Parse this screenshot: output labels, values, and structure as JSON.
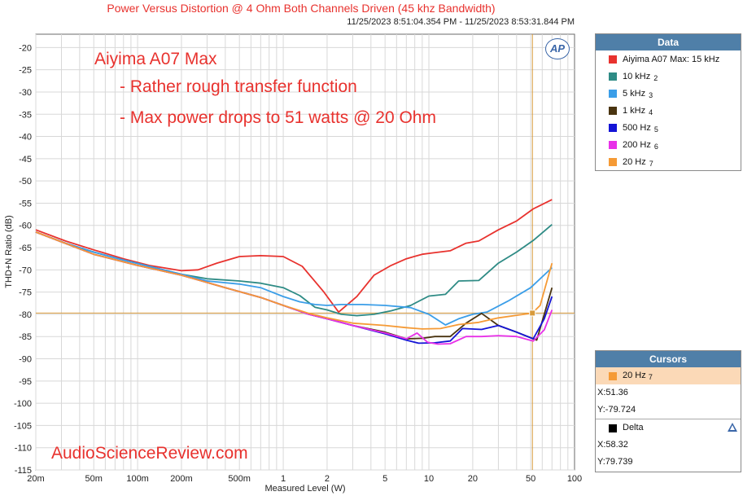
{
  "title": "Power Versus Distortion @ 4 Ohm Both Channels Driven (45 khz Bandwidth)",
  "timestamp": "11/25/2023 8:51:04.354 PM - 11/25/2023 8:53:31.844 PM",
  "logo": "AP",
  "annotations": {
    "device": "Aiyima A07 Max",
    "note1": "- Rather rough transfer function",
    "note2": "- Max power drops to 51 watts @ 20 Ohm",
    "watermark": "AudioScienceReview.com"
  },
  "data_panel": {
    "header": "Data",
    "items": [
      {
        "label": "Aiyima A07 Max: 15 kHz",
        "sub": "",
        "color": "#e8322e"
      },
      {
        "label": "10 kHz",
        "sub": "2",
        "color": "#2e8b85"
      },
      {
        "label": "5 kHz",
        "sub": "3",
        "color": "#3b9ee8"
      },
      {
        "label": "1 kHz",
        "sub": "4",
        "color": "#4a3410"
      },
      {
        "label": "500 Hz",
        "sub": "5",
        "color": "#1414d6"
      },
      {
        "label": "200 Hz",
        "sub": "6",
        "color": "#e830e8"
      },
      {
        "label": "20 Hz",
        "sub": "7",
        "color": "#f59a35"
      }
    ]
  },
  "cursors_panel": {
    "header": "Cursors",
    "selected": {
      "label": "20 Hz",
      "sub": "7",
      "color": "#f59a35"
    },
    "x": "X:51.36",
    "y": "Y:-79.724",
    "delta_label": "Delta",
    "delta_color": "#000000",
    "dx": "X:58.32",
    "dy": "Y:79.739"
  },
  "chart_data": {
    "type": "line",
    "xlabel": "Measured Level (W)",
    "ylabel": "THD+N Ratio (dB)",
    "xscale": "log",
    "xlim": [
      0.02,
      100
    ],
    "ylim": [
      -115,
      -17
    ],
    "x_ticks": [
      {
        "v": 0.02,
        "label": "20m"
      },
      {
        "v": 0.05,
        "label": "50m"
      },
      {
        "v": 0.1,
        "label": "100m"
      },
      {
        "v": 0.2,
        "label": "200m"
      },
      {
        "v": 0.5,
        "label": "500m"
      },
      {
        "v": 1,
        "label": "1"
      },
      {
        "v": 2,
        "label": "2"
      },
      {
        "v": 5,
        "label": "5"
      },
      {
        "v": 10,
        "label": "10"
      },
      {
        "v": 20,
        "label": "20"
      },
      {
        "v": 50,
        "label": "50"
      },
      {
        "v": 100,
        "label": "100"
      }
    ],
    "y_ticks": [
      -20,
      -25,
      -30,
      -35,
      -40,
      -45,
      -50,
      -55,
      -60,
      -65,
      -70,
      -75,
      -80,
      -85,
      -90,
      -95,
      -100,
      -105,
      -110,
      -115
    ],
    "grid": true,
    "cursor": {
      "x": 51.36,
      "y": -79.724,
      "color": "#d89a3a"
    },
    "series": [
      {
        "name": "Aiyima A07 Max: 15 kHz",
        "color": "#e8322e",
        "points": [
          [
            0.02,
            -61
          ],
          [
            0.032,
            -63.5
          ],
          [
            0.05,
            -65.5
          ],
          [
            0.08,
            -67.5
          ],
          [
            0.12,
            -69
          ],
          [
            0.2,
            -70.2
          ],
          [
            0.26,
            -70
          ],
          [
            0.35,
            -68.5
          ],
          [
            0.5,
            -67
          ],
          [
            0.7,
            -66.8
          ],
          [
            1,
            -67
          ],
          [
            1.35,
            -69.2
          ],
          [
            1.9,
            -75
          ],
          [
            2.4,
            -79.5
          ],
          [
            3.2,
            -76
          ],
          [
            4.2,
            -71.2
          ],
          [
            5.5,
            -69
          ],
          [
            7,
            -67.5
          ],
          [
            9,
            -66.5
          ],
          [
            10.5,
            -66.2
          ],
          [
            14,
            -65.7
          ],
          [
            18,
            -64
          ],
          [
            22,
            -63.5
          ],
          [
            30,
            -61
          ],
          [
            40,
            -59
          ],
          [
            52,
            -56.3
          ],
          [
            70,
            -54.2
          ]
        ]
      },
      {
        "name": "10 kHz",
        "color": "#2e8b85",
        "points": [
          [
            0.02,
            -61.5
          ],
          [
            0.032,
            -64
          ],
          [
            0.05,
            -66
          ],
          [
            0.08,
            -67.8
          ],
          [
            0.12,
            -69.2
          ],
          [
            0.2,
            -71
          ],
          [
            0.3,
            -72
          ],
          [
            0.5,
            -72.5
          ],
          [
            0.7,
            -73
          ],
          [
            1,
            -74
          ],
          [
            1.3,
            -75.8
          ],
          [
            1.65,
            -78.4
          ],
          [
            2,
            -79
          ],
          [
            2.5,
            -80
          ],
          [
            3.2,
            -80.3
          ],
          [
            4.2,
            -80
          ],
          [
            5.5,
            -79.2
          ],
          [
            7.5,
            -78
          ],
          [
            10,
            -75.9
          ],
          [
            13,
            -75.5
          ],
          [
            16,
            -72.5
          ],
          [
            22,
            -72.4
          ],
          [
            30,
            -68.5
          ],
          [
            40,
            -66
          ],
          [
            52,
            -63.4
          ],
          [
            70,
            -59.8
          ]
        ]
      },
      {
        "name": "5 kHz",
        "color": "#3b9ee8",
        "points": [
          [
            0.02,
            -61.5
          ],
          [
            0.032,
            -64
          ],
          [
            0.05,
            -66
          ],
          [
            0.08,
            -67.8
          ],
          [
            0.12,
            -69.2
          ],
          [
            0.2,
            -71
          ],
          [
            0.3,
            -72.5
          ],
          [
            0.5,
            -73.2
          ],
          [
            0.7,
            -74
          ],
          [
            1,
            -76
          ],
          [
            1.3,
            -77.2
          ],
          [
            1.65,
            -77.8
          ],
          [
            2,
            -78
          ],
          [
            2.5,
            -77.8
          ],
          [
            3.5,
            -77.8
          ],
          [
            5,
            -78
          ],
          [
            7.5,
            -78.5
          ],
          [
            10,
            -80
          ],
          [
            13,
            -82.4
          ],
          [
            16,
            -81
          ],
          [
            20,
            -80
          ],
          [
            25,
            -79.5
          ],
          [
            35,
            -77
          ],
          [
            50,
            -74
          ],
          [
            70,
            -69.5
          ]
        ]
      },
      {
        "name": "1 kHz",
        "color": "#4a3410",
        "points": [
          [
            0.02,
            -61.5
          ],
          [
            0.05,
            -66.5
          ],
          [
            0.1,
            -69
          ],
          [
            0.2,
            -71.2
          ],
          [
            0.4,
            -74
          ],
          [
            0.7,
            -76.2
          ],
          [
            1,
            -78
          ],
          [
            1.5,
            -80
          ],
          [
            2,
            -81
          ],
          [
            3,
            -82.5
          ],
          [
            5,
            -84
          ],
          [
            7,
            -85.5
          ],
          [
            9,
            -85.4
          ],
          [
            11,
            -85
          ],
          [
            14,
            -85
          ],
          [
            18,
            -82
          ],
          [
            23,
            -79.8
          ],
          [
            30,
            -82.5
          ],
          [
            40,
            -84
          ],
          [
            55,
            -85.8
          ],
          [
            62,
            -80
          ],
          [
            70,
            -74
          ]
        ]
      },
      {
        "name": "500 Hz",
        "color": "#1414d6",
        "points": [
          [
            0.02,
            -61.5
          ],
          [
            0.05,
            -66.5
          ],
          [
            0.1,
            -69
          ],
          [
            0.2,
            -71.2
          ],
          [
            0.4,
            -74
          ],
          [
            0.7,
            -76.2
          ],
          [
            1,
            -78
          ],
          [
            1.5,
            -80
          ],
          [
            2,
            -81
          ],
          [
            3,
            -82.5
          ],
          [
            5,
            -84.4
          ],
          [
            7,
            -85.8
          ],
          [
            8.5,
            -86.5
          ],
          [
            11,
            -86.4
          ],
          [
            14,
            -86
          ],
          [
            17,
            -83.2
          ],
          [
            23,
            -83.4
          ],
          [
            30,
            -82.5
          ],
          [
            40,
            -84
          ],
          [
            52,
            -85.5
          ],
          [
            62,
            -81
          ],
          [
            70,
            -76
          ]
        ]
      },
      {
        "name": "200 Hz",
        "color": "#e830e8",
        "points": [
          [
            0.02,
            -61.5
          ],
          [
            0.05,
            -66.5
          ],
          [
            0.1,
            -69
          ],
          [
            0.2,
            -71.2
          ],
          [
            0.4,
            -74
          ],
          [
            0.7,
            -76.2
          ],
          [
            1,
            -78
          ],
          [
            1.5,
            -80
          ],
          [
            2,
            -81
          ],
          [
            3,
            -82.5
          ],
          [
            5,
            -84.2
          ],
          [
            7,
            -85.5
          ],
          [
            8.3,
            -84.2
          ],
          [
            9.8,
            -86.3
          ],
          [
            11.5,
            -86.7
          ],
          [
            14,
            -86.6
          ],
          [
            18,
            -85
          ],
          [
            23,
            -85
          ],
          [
            30,
            -84.8
          ],
          [
            40,
            -85
          ],
          [
            52,
            -86
          ],
          [
            62,
            -83.5
          ],
          [
            70,
            -79
          ]
        ]
      },
      {
        "name": "20 Hz",
        "color": "#f59a35",
        "points": [
          [
            0.02,
            -61.5
          ],
          [
            0.05,
            -66.5
          ],
          [
            0.1,
            -69
          ],
          [
            0.2,
            -71.2
          ],
          [
            0.4,
            -74
          ],
          [
            0.7,
            -76.2
          ],
          [
            1,
            -78
          ],
          [
            1.5,
            -79.8
          ],
          [
            2,
            -80.8
          ],
          [
            3,
            -82
          ],
          [
            5,
            -82.5
          ],
          [
            7,
            -83
          ],
          [
            9,
            -83.3
          ],
          [
            12,
            -83.2
          ],
          [
            16,
            -82.3
          ],
          [
            22,
            -81.8
          ],
          [
            30,
            -80.8
          ],
          [
            45,
            -80
          ],
          [
            51.36,
            -79.7
          ],
          [
            58,
            -78
          ],
          [
            70,
            -68.5
          ]
        ]
      }
    ]
  }
}
